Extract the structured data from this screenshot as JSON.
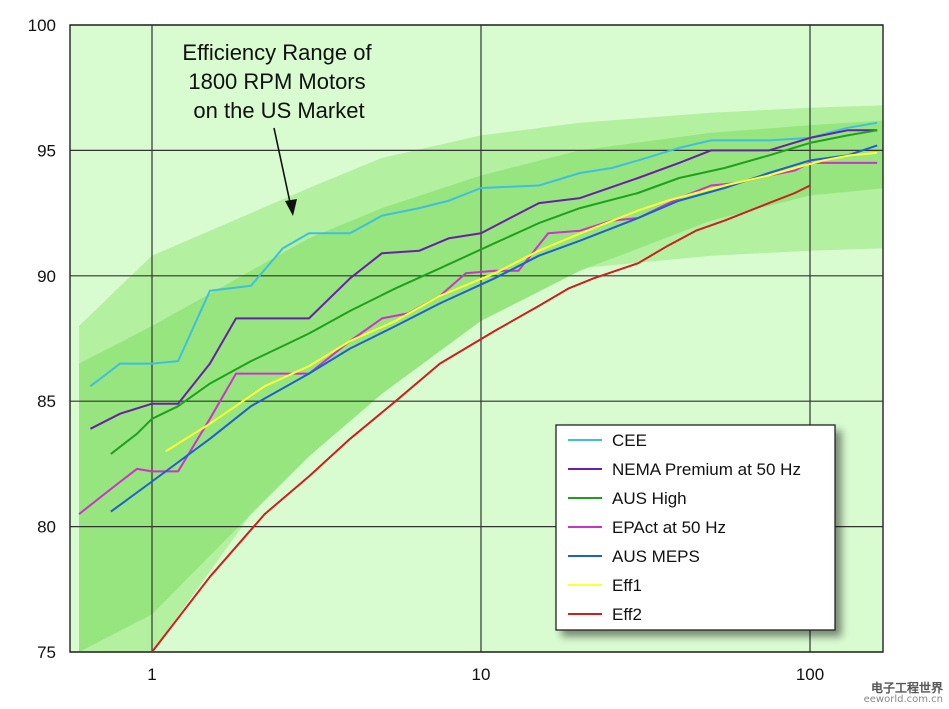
{
  "chart_data": {
    "type": "line",
    "title": "",
    "xlabel": "",
    "ylabel": "",
    "xscale": "log",
    "xlim": [
      0.6,
      170
    ],
    "ylim": [
      75,
      100
    ],
    "x_ticks": [
      1,
      10,
      100
    ],
    "x_tick_labels": [
      "1",
      "10",
      "100"
    ],
    "y_ticks": [
      75,
      80,
      85,
      90,
      95,
      100
    ],
    "y_tick_labels": [
      "75",
      "80",
      "85",
      "90",
      "95",
      "100"
    ],
    "grid": true,
    "legend_position": "bottom-right",
    "annotation": {
      "lines": [
        "Efficiency Range of",
        "1800 RPM Motors",
        "on the US Market"
      ],
      "arrow_to": {
        "x": 2.9,
        "y": 92.6
      }
    },
    "band_outer": {
      "x": [
        0.6,
        1,
        2,
        3,
        5,
        10,
        20,
        50,
        100,
        170
      ],
      "lower": [
        75,
        75,
        80.5,
        83,
        86,
        89,
        90.3,
        90.8,
        91,
        91.1
      ],
      "upper": [
        88,
        90.8,
        92.5,
        93.5,
        94.7,
        95.6,
        96.1,
        96.5,
        96.7,
        96.8
      ]
    },
    "band_inner": {
      "x": [
        0.6,
        1,
        2,
        3,
        5,
        10,
        20,
        50,
        100,
        170
      ],
      "lower": [
        75,
        76.5,
        80.5,
        82.8,
        85.3,
        88.2,
        90.2,
        92.2,
        93.2,
        93.5
      ],
      "upper": [
        86.5,
        88,
        90.2,
        91.5,
        92.7,
        94,
        95,
        95.7,
        96,
        96.2
      ]
    },
    "series": [
      {
        "name": "CEE",
        "color": "#3fbfe0",
        "x": [
          0.65,
          0.8,
          1.0,
          1.2,
          1.5,
          2.0,
          2.5,
          3.0,
          4.0,
          5.0,
          6.5,
          8.0,
          10,
          15,
          20,
          25,
          30,
          40,
          50,
          75,
          100,
          130,
          160
        ],
        "y": [
          85.6,
          86.5,
          86.5,
          86.6,
          89.4,
          89.6,
          91.1,
          91.7,
          91.7,
          92.4,
          92.7,
          93.0,
          93.5,
          93.6,
          94.1,
          94.3,
          94.6,
          95.1,
          95.4,
          95.4,
          95.5,
          95.9,
          96.1
        ]
      },
      {
        "name": "NEMA Premium at 50 Hz",
        "color": "#6a1fa8",
        "x": [
          0.65,
          0.8,
          1.0,
          1.2,
          1.5,
          1.8,
          2.5,
          3.0,
          4.0,
          5.0,
          6.5,
          8.0,
          10,
          15,
          20,
          30,
          40,
          50,
          75,
          100,
          130,
          160
        ],
        "y": [
          83.9,
          84.5,
          84.9,
          84.9,
          86.5,
          88.3,
          88.3,
          88.3,
          89.9,
          90.9,
          91.0,
          91.5,
          91.7,
          92.9,
          93.1,
          93.9,
          94.5,
          95.0,
          95.0,
          95.5,
          95.8,
          95.8
        ]
      },
      {
        "name": "AUS High",
        "color": "#1fa01f",
        "x": [
          0.75,
          0.9,
          1.0,
          1.2,
          1.5,
          2.0,
          2.5,
          3.0,
          4.0,
          5.5,
          7.5,
          11,
          15,
          20,
          30,
          40,
          55,
          75,
          100,
          130,
          160
        ],
        "y": [
          82.9,
          83.7,
          84.3,
          84.8,
          85.7,
          86.6,
          87.2,
          87.7,
          88.6,
          89.5,
          90.3,
          91.3,
          92.1,
          92.7,
          93.3,
          93.9,
          94.3,
          94.8,
          95.3,
          95.6,
          95.8
        ]
      },
      {
        "name": "EPAct at 50 Hz",
        "color": "#cc33cc",
        "x": [
          0.6,
          0.75,
          0.9,
          1.0,
          1.2,
          1.5,
          1.8,
          2.5,
          3.0,
          4.0,
          5.0,
          6.0,
          7.5,
          9.0,
          11,
          13,
          16,
          20,
          25,
          30,
          40,
          50,
          60,
          75,
          90,
          100,
          130,
          160
        ],
        "y": [
          80.5,
          81.5,
          82.3,
          82.2,
          82.2,
          84.3,
          86.1,
          86.1,
          86.1,
          87.4,
          88.3,
          88.5,
          89.2,
          90.1,
          90.2,
          90.2,
          91.7,
          91.8,
          92.2,
          92.3,
          93.1,
          93.6,
          93.7,
          94.0,
          94.2,
          94.5,
          94.5,
          94.5
        ]
      },
      {
        "name": "AUS MEPS",
        "color": "#1f5fd0",
        "x": [
          0.75,
          1.0,
          1.5,
          2.0,
          3.0,
          4.0,
          5.5,
          7.5,
          11,
          15,
          20,
          30,
          40,
          55,
          75,
          100,
          130,
          160
        ],
        "y": [
          80.6,
          81.8,
          83.5,
          84.8,
          86.1,
          87.1,
          88.0,
          88.9,
          89.9,
          90.8,
          91.4,
          92.3,
          93.0,
          93.5,
          94.1,
          94.6,
          94.8,
          95.2
        ]
      },
      {
        "name": "Eff1",
        "color": "#ffff33",
        "x": [
          1.1,
          1.5,
          2.2,
          3.0,
          4.0,
          5.5,
          7.5,
          11,
          15,
          18.5,
          22,
          30,
          37,
          45,
          55,
          75,
          90,
          110,
          132,
          160
        ],
        "y": [
          83.0,
          84.1,
          85.6,
          86.4,
          87.4,
          88.2,
          89.2,
          90.1,
          91.0,
          91.5,
          91.9,
          92.6,
          93.0,
          93.3,
          93.6,
          94.0,
          94.3,
          94.6,
          94.8,
          94.9
        ]
      },
      {
        "name": "Eff2",
        "color": "#cc1f1f",
        "x": [
          1.0,
          1.5,
          2.2,
          3.0,
          4.0,
          5.5,
          7.5,
          11,
          15,
          18.5,
          22,
          30,
          37,
          45,
          55,
          75,
          90,
          100
        ],
        "y": [
          75.0,
          78.0,
          80.5,
          82.0,
          83.5,
          85.0,
          86.5,
          87.8,
          88.8,
          89.5,
          89.9,
          90.5,
          91.2,
          91.8,
          92.2,
          92.9,
          93.3,
          93.6
        ]
      }
    ]
  },
  "watermark": {
    "brand": "电子工程世界",
    "site": "eeworld.com.cn"
  },
  "colors": {
    "background": "#d8fbd0",
    "band_outer": "#b3f0a0",
    "band_inner": "#96e57e",
    "grid": "#333333"
  }
}
